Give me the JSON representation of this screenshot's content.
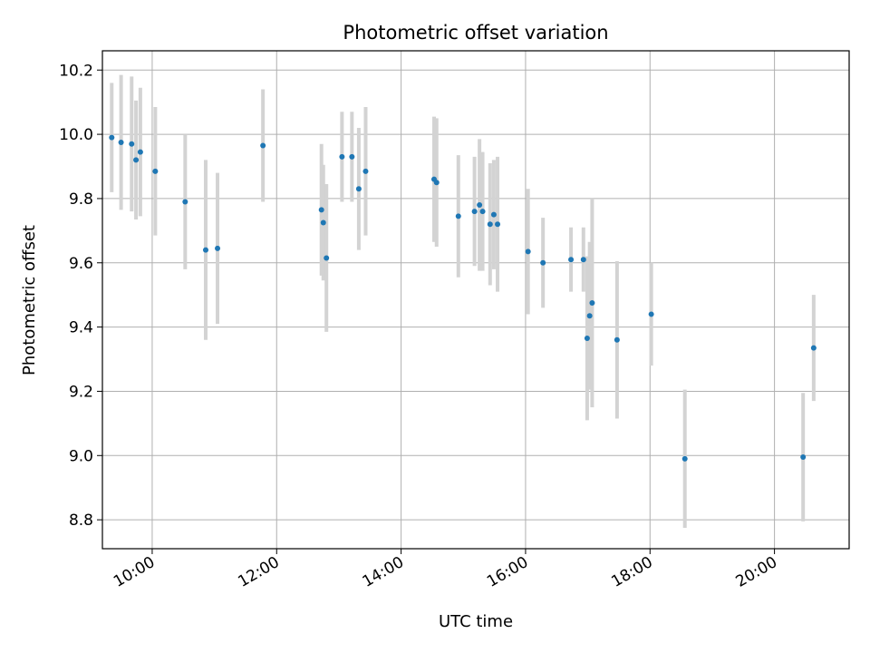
{
  "chart_data": {
    "type": "scatter",
    "title": "Photometric offset variation",
    "xlabel": "UTC time",
    "ylabel": "Photometric offset",
    "grid": true,
    "xlim": [
      9.2,
      21.2
    ],
    "ylim": [
      8.71,
      10.26
    ],
    "x_ticks": [
      {
        "value": 10,
        "label": "10:00"
      },
      {
        "value": 12,
        "label": "12:00"
      },
      {
        "value": 14,
        "label": "14:00"
      },
      {
        "value": 16,
        "label": "16:00"
      },
      {
        "value": 18,
        "label": "18:00"
      },
      {
        "value": 20,
        "label": "20:00"
      }
    ],
    "y_ticks": [
      {
        "value": 8.8,
        "label": "8.8"
      },
      {
        "value": 9.0,
        "label": "9.0"
      },
      {
        "value": 9.2,
        "label": "9.2"
      },
      {
        "value": 9.4,
        "label": "9.4"
      },
      {
        "value": 9.6,
        "label": "9.6"
      },
      {
        "value": 9.8,
        "label": "9.8"
      },
      {
        "value": 10.0,
        "label": "10.0"
      },
      {
        "value": 10.2,
        "label": "10.2"
      }
    ],
    "point_color": "#1f77b4",
    "errorbar_color": "#d3d3d3",
    "points": [
      {
        "x": 9.35,
        "y": 9.99,
        "err": 0.17
      },
      {
        "x": 9.5,
        "y": 9.975,
        "err": 0.21
      },
      {
        "x": 9.67,
        "y": 9.97,
        "err": 0.21
      },
      {
        "x": 9.74,
        "y": 9.92,
        "err": 0.185
      },
      {
        "x": 9.81,
        "y": 9.945,
        "err": 0.2
      },
      {
        "x": 10.05,
        "y": 9.885,
        "err": 0.2
      },
      {
        "x": 10.53,
        "y": 9.79,
        "err": 0.21
      },
      {
        "x": 10.86,
        "y": 9.64,
        "err": 0.28
      },
      {
        "x": 11.05,
        "y": 9.645,
        "err": 0.235
      },
      {
        "x": 11.78,
        "y": 9.965,
        "err": 0.175
      },
      {
        "x": 12.72,
        "y": 9.765,
        "err": 0.205
      },
      {
        "x": 12.75,
        "y": 9.725,
        "err": 0.18
      },
      {
        "x": 12.8,
        "y": 9.615,
        "err": 0.23
      },
      {
        "x": 13.05,
        "y": 9.93,
        "err": 0.14
      },
      {
        "x": 13.21,
        "y": 9.93,
        "err": 0.14
      },
      {
        "x": 13.32,
        "y": 9.83,
        "err": 0.19
      },
      {
        "x": 13.43,
        "y": 9.885,
        "err": 0.2
      },
      {
        "x": 14.53,
        "y": 9.86,
        "err": 0.195
      },
      {
        "x": 14.57,
        "y": 9.85,
        "err": 0.2
      },
      {
        "x": 14.92,
        "y": 9.745,
        "err": 0.19
      },
      {
        "x": 15.18,
        "y": 9.76,
        "err": 0.17
      },
      {
        "x": 15.26,
        "y": 9.78,
        "err": 0.205
      },
      {
        "x": 15.31,
        "y": 9.76,
        "err": 0.185
      },
      {
        "x": 15.43,
        "y": 9.72,
        "err": 0.19
      },
      {
        "x": 15.49,
        "y": 9.75,
        "err": 0.17
      },
      {
        "x": 15.55,
        "y": 9.72,
        "err": 0.21
      },
      {
        "x": 16.04,
        "y": 9.635,
        "err": 0.195
      },
      {
        "x": 16.28,
        "y": 9.6,
        "err": 0.14
      },
      {
        "x": 16.73,
        "y": 9.61,
        "err": 0.1
      },
      {
        "x": 16.93,
        "y": 9.61,
        "err": 0.1
      },
      {
        "x": 16.99,
        "y": 9.365,
        "err": 0.255
      },
      {
        "x": 17.03,
        "y": 9.435,
        "err": 0.23
      },
      {
        "x": 17.07,
        "y": 9.475,
        "err": 0.325
      },
      {
        "x": 17.47,
        "y": 9.36,
        "err": 0.245
      },
      {
        "x": 18.02,
        "y": 9.44,
        "err": 0.16
      },
      {
        "x": 18.56,
        "y": 8.99,
        "err": 0.215
      },
      {
        "x": 20.46,
        "y": 8.995,
        "err": 0.2
      },
      {
        "x": 20.63,
        "y": 9.335,
        "err": 0.165
      }
    ]
  }
}
